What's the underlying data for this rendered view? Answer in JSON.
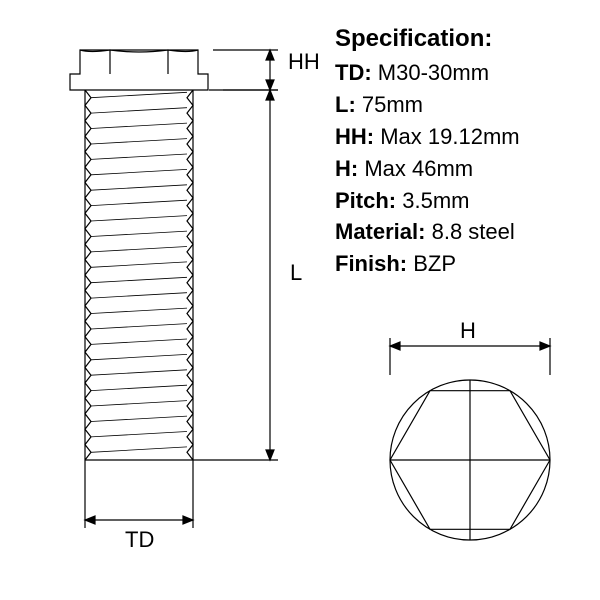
{
  "diagram": {
    "type": "technical-drawing",
    "stroke_color": "#000000",
    "stroke_width": 1.2,
    "background_color": "#ffffff",
    "dimension_labels": {
      "HH": "HH",
      "L": "L",
      "TD": "TD",
      "H": "H"
    },
    "bolt": {
      "head_top_width": 118,
      "head_bottom_width": 138,
      "head_height": 40,
      "shaft_width": 108,
      "shaft_length": 370,
      "thread_count": 24,
      "thread_depth": 6
    },
    "hex_view": {
      "diameter": 160,
      "label_offset": 28
    }
  },
  "spec": {
    "title": "Specification:",
    "title_fontsize": 24,
    "row_fontsize": 22,
    "label_fontweight": "bold",
    "rows": [
      {
        "label": "TD:",
        "value": " M30-30mm"
      },
      {
        "label": "L:",
        "value": " 75mm"
      },
      {
        "label": "HH:",
        "value": " Max 19.12mm"
      },
      {
        "label": "H:",
        "value": " Max 46mm"
      },
      {
        "label": "Pitch:",
        "value": " 3.5mm"
      },
      {
        "label": "Material:",
        "value": " 8.8 steel"
      },
      {
        "label": "Finish:",
        "value": " BZP"
      }
    ]
  }
}
